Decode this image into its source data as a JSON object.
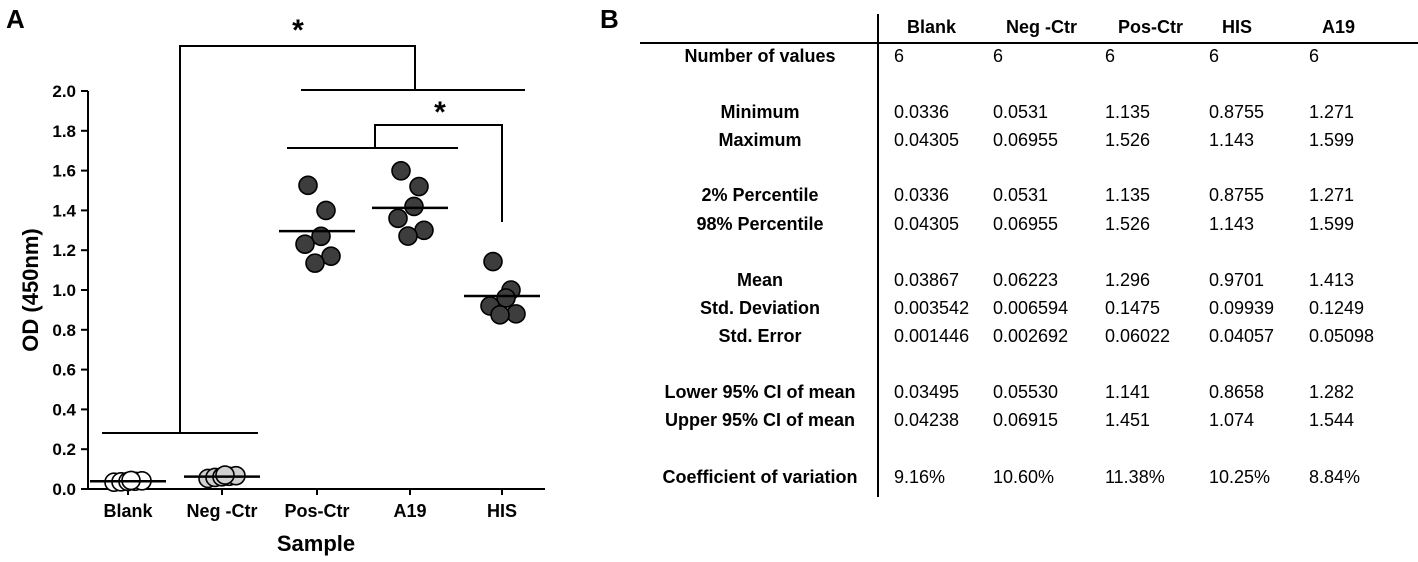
{
  "panels": {
    "a_label": "A",
    "b_label": "B"
  },
  "chart_data": [
    {
      "type": "scatter",
      "panel": "A",
      "title": "",
      "xlabel": "Sample",
      "ylabel": "OD (450nm)",
      "ylim": [
        0.0,
        2.0
      ],
      "yticks": [
        "0.0",
        "0.2",
        "0.4",
        "0.6",
        "0.8",
        "1.0",
        "1.2",
        "1.4",
        "1.6",
        "1.8",
        "2.0"
      ],
      "categories": [
        "Blank",
        "Neg -Ctr",
        "Pos-Ctr",
        "A19",
        "HIS"
      ],
      "series": [
        {
          "category": "Blank",
          "fill": "#ffffff",
          "points": [
            0.034,
            0.036,
            0.038,
            0.039,
            0.041,
            0.043
          ],
          "mean": 0.03867
        },
        {
          "category": "Neg -Ctr",
          "fill": "#d0d0d0",
          "points": [
            0.053,
            0.058,
            0.061,
            0.064,
            0.067,
            0.07
          ],
          "mean": 0.06223
        },
        {
          "category": "Pos-Ctr",
          "fill": "#3d3d3d",
          "points": [
            1.526,
            1.4,
            1.27,
            1.23,
            1.17,
            1.135
          ],
          "mean": 1.296
        },
        {
          "category": "A19",
          "fill": "#3d3d3d",
          "points": [
            1.599,
            1.52,
            1.42,
            1.36,
            1.3,
            1.271
          ],
          "mean": 1.413
        },
        {
          "category": "HIS",
          "fill": "#3d3d3d",
          "points": [
            1.143,
            1.0,
            0.96,
            0.92,
            0.88,
            0.8755
          ],
          "mean": 0.9701
        }
      ],
      "annotations": [
        "*",
        "*"
      ]
    },
    {
      "type": "table",
      "panel": "B",
      "columns": [
        "Blank",
        "Neg -Ctr",
        "Pos-Ctr",
        "HIS",
        "A19"
      ],
      "rows": [
        {
          "label": "Number of values",
          "values": [
            "6",
            "6",
            "6",
            "6",
            "6"
          ]
        },
        {
          "label": "Minimum",
          "values": [
            "0.0336",
            "0.0531",
            "1.135",
            "0.8755",
            "1.271"
          ]
        },
        {
          "label": "Maximum",
          "values": [
            "0.04305",
            "0.06955",
            "1.526",
            "1.143",
            "1.599"
          ]
        },
        {
          "label": "2% Percentile",
          "values": [
            "0.0336",
            "0.0531",
            "1.135",
            "0.8755",
            "1.271"
          ]
        },
        {
          "label": "98% Percentile",
          "values": [
            "0.04305",
            "0.06955",
            "1.526",
            "1.143",
            "1.599"
          ]
        },
        {
          "label": "Mean",
          "values": [
            "0.03867",
            "0.06223",
            "1.296",
            "0.9701",
            "1.413"
          ]
        },
        {
          "label": "Std. Deviation",
          "values": [
            "0.003542",
            "0.006594",
            "0.1475",
            "0.09939",
            "0.1249"
          ]
        },
        {
          "label": "Std. Error",
          "values": [
            "0.001446",
            "0.002692",
            "0.06022",
            "0.04057",
            "0.05098"
          ]
        },
        {
          "label": "Lower 95% CI of mean",
          "values": [
            "0.03495",
            "0.05530",
            "1.141",
            "0.8658",
            "1.282"
          ]
        },
        {
          "label": "Upper 95% CI of mean",
          "values": [
            "0.04238",
            "0.06915",
            "1.451",
            "1.074",
            "1.544"
          ]
        },
        {
          "label": "Coefficient of variation",
          "values": [
            "9.16%",
            "10.60%",
            "11.38%",
            "10.25%",
            "8.84%"
          ]
        }
      ]
    }
  ]
}
